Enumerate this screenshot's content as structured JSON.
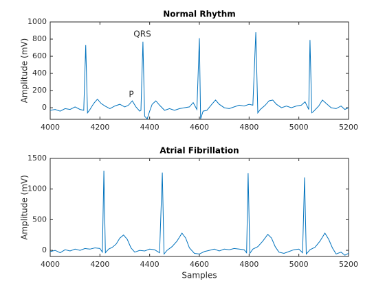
{
  "chart_data": [
    {
      "type": "line",
      "title": "Normal Rhythm",
      "ylabel": "Amplitude (mV)",
      "annotations": [
        "QRS",
        "P"
      ],
      "xlim": [
        4000,
        5200
      ],
      "xticks": [
        4000,
        4200,
        4400,
        4600,
        4800,
        5000,
        5200
      ],
      "ylim": [
        -135,
        1000
      ],
      "yticks": [
        0,
        200,
        400,
        600,
        800,
        1000
      ],
      "series": [
        {
          "color": "#0072bd",
          "x": [
            4000,
            4020,
            4040,
            4060,
            4080,
            4100,
            4120,
            4135,
            4143,
            4150,
            4160,
            4175,
            4190,
            4205,
            4220,
            4240,
            4260,
            4280,
            4300,
            4315,
            4330,
            4345,
            4360,
            4365,
            4373,
            4380,
            4390,
            4400,
            4410,
            4425,
            4440,
            4460,
            4480,
            4500,
            4520,
            4540,
            4560,
            4575,
            4590,
            4600,
            4605,
            4615,
            4630,
            4650,
            4665,
            4680,
            4700,
            4720,
            4740,
            4760,
            4780,
            4800,
            4815,
            4827,
            4835,
            4845,
            4865,
            4880,
            4895,
            4910,
            4930,
            4950,
            4970,
            4990,
            5010,
            5025,
            5040,
            5045,
            5052,
            5060,
            5080,
            5095,
            5110,
            5130,
            5150,
            5170,
            5185,
            5200
          ],
          "values": [
            -30,
            -20,
            -40,
            -10,
            -20,
            10,
            -20,
            -30,
            730,
            -60,
            -20,
            50,
            100,
            50,
            20,
            -10,
            20,
            40,
            10,
            30,
            80,
            10,
            -40,
            -30,
            770,
            -100,
            -130,
            -40,
            40,
            80,
            30,
            -30,
            -10,
            -30,
            -10,
            0,
            10,
            60,
            -20,
            810,
            -130,
            -40,
            -30,
            40,
            90,
            40,
            0,
            -10,
            10,
            30,
            20,
            40,
            30,
            880,
            -60,
            -20,
            30,
            80,
            90,
            40,
            0,
            20,
            0,
            20,
            30,
            70,
            -20,
            790,
            -60,
            -40,
            20,
            90,
            50,
            0,
            -10,
            20,
            -20,
            0
          ]
        }
      ]
    },
    {
      "type": "line",
      "title": "Atrial Fibrillation",
      "ylabel": "Amplitude (mV)",
      "xlabel": "Samples",
      "xlim": [
        4000,
        5200
      ],
      "xticks": [
        4000,
        4200,
        4400,
        4600,
        4800,
        5000,
        5200
      ],
      "ylim": [
        -100,
        1500
      ],
      "yticks": [
        0,
        500,
        1000,
        1500
      ],
      "series": [
        {
          "color": "#0072bd",
          "x": [
            4000,
            4020,
            4040,
            4060,
            4080,
            4100,
            4120,
            4140,
            4160,
            4180,
            4200,
            4210,
            4216,
            4222,
            4235,
            4250,
            4265,
            4280,
            4295,
            4310,
            4325,
            4340,
            4360,
            4380,
            4400,
            4420,
            4440,
            4451,
            4458,
            4470,
            4490,
            4510,
            4530,
            4545,
            4560,
            4580,
            4600,
            4620,
            4640,
            4660,
            4680,
            4700,
            4720,
            4740,
            4760,
            4780,
            4790,
            4796,
            4803,
            4815,
            4835,
            4855,
            4875,
            4890,
            4905,
            4920,
            4940,
            4960,
            4980,
            5000,
            5015,
            5023,
            5030,
            5045,
            5065,
            5085,
            5105,
            5120,
            5135,
            5150,
            5170,
            5185,
            5200
          ],
          "values": [
            -20,
            0,
            -40,
            10,
            -10,
            20,
            0,
            30,
            20,
            40,
            30,
            -30,
            1300,
            -40,
            20,
            50,
            100,
            200,
            250,
            180,
            40,
            -30,
            0,
            -10,
            20,
            10,
            -40,
            1270,
            -60,
            0,
            60,
            150,
            280,
            200,
            40,
            -50,
            -60,
            -20,
            0,
            20,
            -10,
            20,
            10,
            30,
            20,
            10,
            -40,
            1260,
            -50,
            20,
            60,
            150,
            260,
            200,
            60,
            -30,
            -50,
            -20,
            10,
            20,
            -40,
            1190,
            -60,
            10,
            50,
            150,
            280,
            180,
            40,
            -60,
            -30,
            -80,
            -50
          ]
        }
      ]
    }
  ]
}
